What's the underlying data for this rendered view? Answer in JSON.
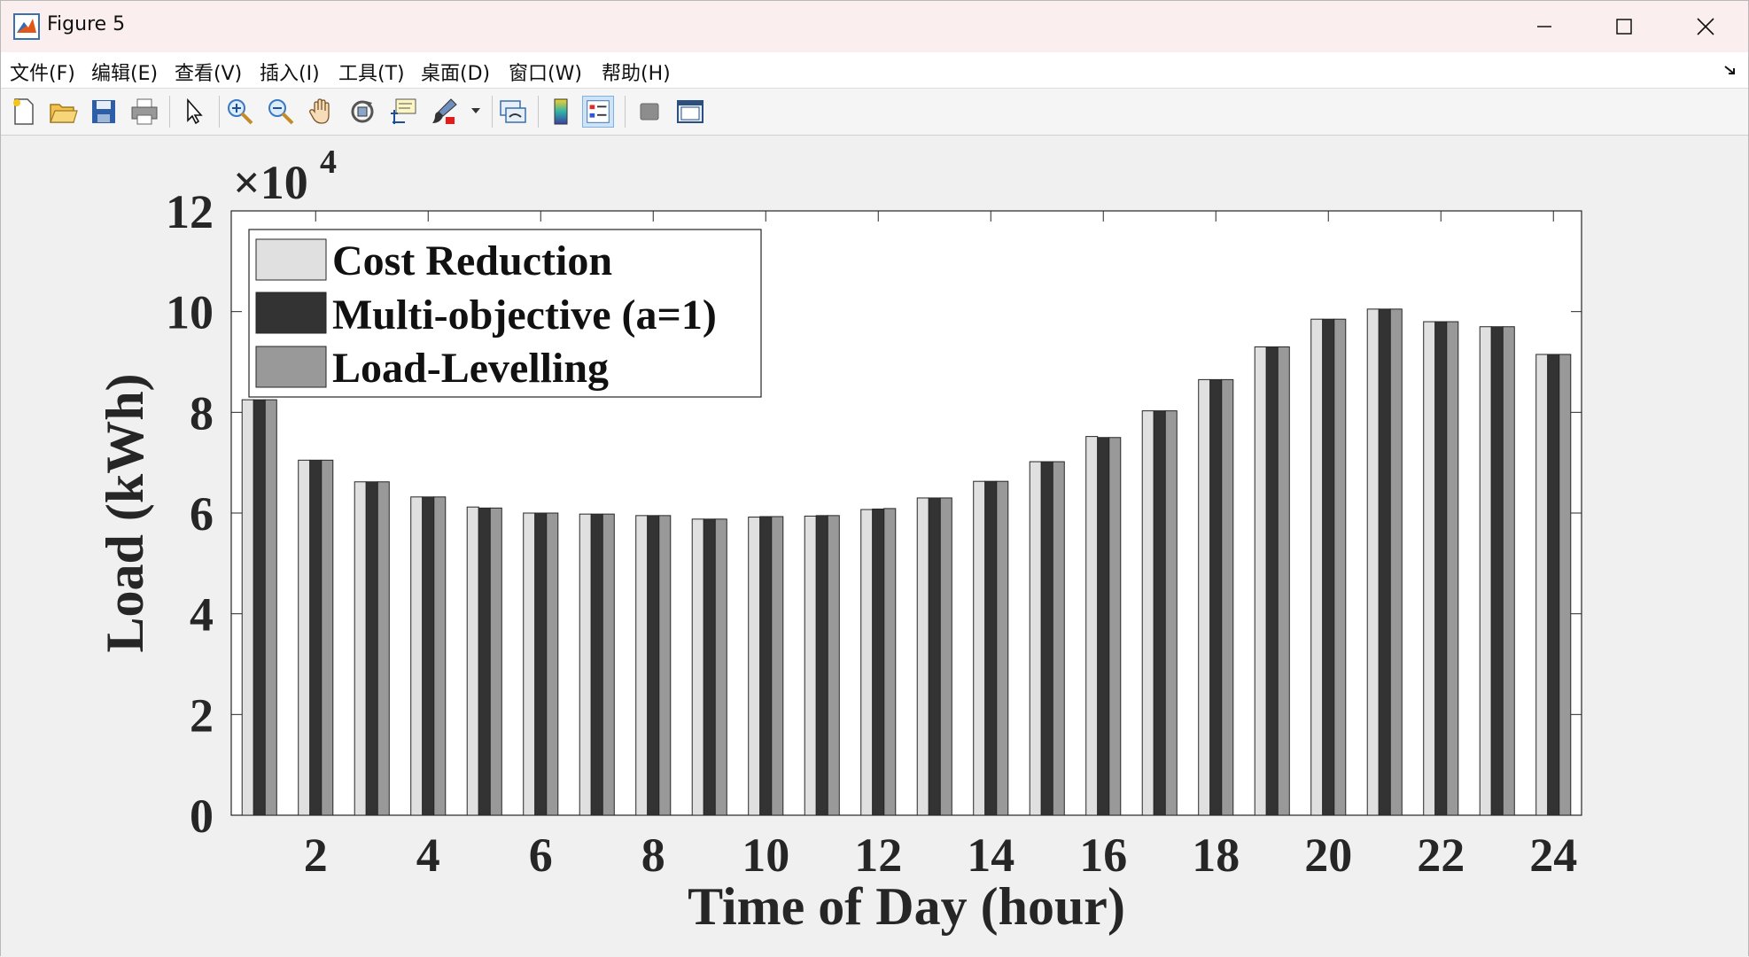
{
  "window": {
    "title": "Figure 5",
    "icon": "matlab-icon",
    "controls": [
      "minimize-icon",
      "maximize-icon",
      "close-icon"
    ]
  },
  "menu": {
    "items": [
      "文件(F)",
      "编辑(E)",
      "查看(V)",
      "插入(I)",
      "工具(T)",
      "桌面(D)",
      "窗口(W)",
      "帮助(H)"
    ]
  },
  "toolbar": {
    "icons": [
      "new-figure-icon",
      "open-file-icon",
      "save-icon",
      "print-icon",
      "select-arrow-icon",
      "zoom-in-icon",
      "zoom-out-icon",
      "pan-hand-icon",
      "rotate-3d-icon",
      "data-cursor-icon",
      "brush-icon",
      "link-plot-icon",
      "colorbar-icon",
      "legend-icon",
      "hide-plot-tools-icon",
      "show-plot-tools-icon"
    ]
  },
  "colors": {
    "cost_reduction": "#e0e0e0",
    "multi_objective": "#333333",
    "load_levelling": "#999999"
  },
  "chart_data": {
    "type": "bar",
    "title": "",
    "xlabel": "Time of Day (hour)",
    "ylabel": "Load (kWh)",
    "y_exponent_label": "×10",
    "y_exponent_power": "4",
    "categories": [
      1,
      2,
      3,
      4,
      5,
      6,
      7,
      8,
      9,
      10,
      11,
      12,
      13,
      14,
      15,
      16,
      17,
      18,
      19,
      20,
      21,
      22,
      23,
      24
    ],
    "x_tick_labels": [
      "2",
      "4",
      "6",
      "8",
      "10",
      "12",
      "14",
      "16",
      "18",
      "20",
      "22",
      "24"
    ],
    "y_tick_labels": [
      "0",
      "2",
      "4",
      "6",
      "8",
      "10",
      "12"
    ],
    "ylim": [
      0,
      12
    ],
    "legend_position": "top-left",
    "series": [
      {
        "name": "Cost Reduction",
        "values": [
          8.25,
          7.05,
          6.62,
          6.32,
          6.12,
          6.0,
          5.98,
          5.95,
          5.88,
          5.92,
          5.94,
          6.07,
          6.3,
          6.63,
          7.02,
          7.52,
          8.03,
          8.65,
          9.3,
          9.85,
          10.05,
          9.8,
          9.7,
          9.15
        ]
      },
      {
        "name": "Multi-objective (a=1)",
        "values": [
          8.25,
          7.05,
          6.62,
          6.32,
          6.1,
          6.0,
          5.98,
          5.95,
          5.88,
          5.93,
          5.95,
          6.08,
          6.3,
          6.63,
          7.02,
          7.5,
          8.03,
          8.65,
          9.3,
          9.85,
          10.05,
          9.8,
          9.7,
          9.15
        ]
      },
      {
        "name": "Load-Levelling",
        "values": [
          8.25,
          7.05,
          6.62,
          6.32,
          6.1,
          6.0,
          5.98,
          5.95,
          5.88,
          5.93,
          5.95,
          6.09,
          6.3,
          6.63,
          7.02,
          7.5,
          8.03,
          8.65,
          9.3,
          9.85,
          10.05,
          9.8,
          9.7,
          9.15
        ]
      }
    ]
  }
}
